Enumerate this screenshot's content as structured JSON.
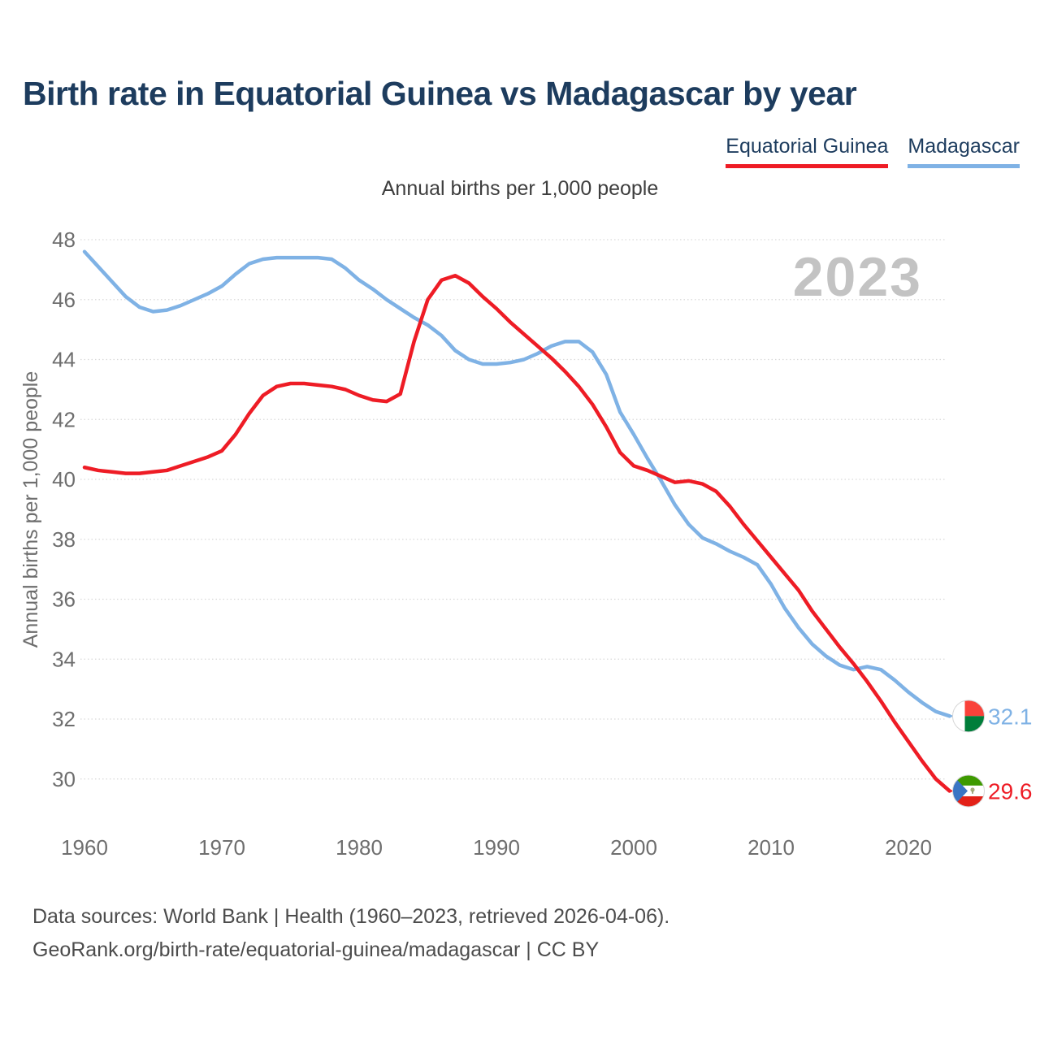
{
  "header": {
    "title": "Birth rate in Equatorial Guinea vs Madagascar by year"
  },
  "legend": {
    "items": [
      {
        "label": "Equatorial Guinea",
        "color": "#ee1c25"
      },
      {
        "label": "Madagascar",
        "color": "#7fb2e5"
      }
    ]
  },
  "subtitle": "Annual births per 1,000 people",
  "colors": {
    "equatorial_guinea": "#ee1c25",
    "madagascar": "#7fb2e5",
    "title_text": "#1d3c5e",
    "axis_text": "#6e6e6e",
    "gridline": "#d9d9d9",
    "watermark": "#c3c3c3",
    "footer_text": "#4c4c4c",
    "flag_blue": "#3a75c4",
    "flag_green": "#3e9a00",
    "flag_red": "#e32118",
    "madagascar_flag_green": "#007e3a",
    "madagascar_flag_red": "#f9423a"
  },
  "chart_data": {
    "type": "line",
    "title": "Birth rate in Equatorial Guinea vs Madagascar by year",
    "subtitle": "Annual births per 1,000 people",
    "xlabel": "",
    "ylabel": "Annual births per 1,000 people",
    "watermark": "2023",
    "grid": "horizontal-dotted",
    "legend_position": "top-right",
    "xlim": [
      1960,
      2023
    ],
    "ylim": [
      29,
      48.5
    ],
    "x_ticks": [
      1960,
      1970,
      1980,
      1990,
      2000,
      2010,
      2020
    ],
    "y_ticks": [
      48,
      46,
      44,
      42,
      40,
      38,
      36,
      34,
      32,
      30
    ],
    "years": [
      1960,
      1961,
      1962,
      1963,
      1964,
      1965,
      1966,
      1967,
      1968,
      1969,
      1970,
      1971,
      1972,
      1973,
      1974,
      1975,
      1976,
      1977,
      1978,
      1979,
      1980,
      1981,
      1982,
      1983,
      1984,
      1985,
      1986,
      1987,
      1988,
      1989,
      1990,
      1991,
      1992,
      1993,
      1994,
      1995,
      1996,
      1997,
      1998,
      1999,
      2000,
      2001,
      2002,
      2003,
      2004,
      2005,
      2006,
      2007,
      2008,
      2009,
      2010,
      2011,
      2012,
      2013,
      2014,
      2015,
      2016,
      2017,
      2018,
      2019,
      2020,
      2021,
      2022,
      2023
    ],
    "series": [
      {
        "name": "Equatorial Guinea",
        "color": "#ee1c25",
        "end_label": "29.6",
        "end_value": 29.6,
        "flag": "equatorial-guinea-flag-icon",
        "values": [
          40.4,
          40.3,
          40.25,
          40.2,
          40.2,
          40.25,
          40.3,
          40.45,
          40.6,
          40.75,
          40.95,
          41.5,
          42.2,
          42.8,
          43.1,
          43.2,
          43.2,
          43.15,
          43.1,
          43.0,
          42.8,
          42.65,
          42.6,
          42.85,
          44.6,
          46.0,
          46.65,
          46.8,
          46.55,
          46.1,
          45.7,
          45.25,
          44.85,
          44.45,
          44.05,
          43.6,
          43.1,
          42.5,
          41.75,
          40.9,
          40.45,
          40.3,
          40.1,
          39.9,
          39.95,
          39.85,
          39.6,
          39.1,
          38.5,
          37.95,
          37.4,
          36.85,
          36.3,
          35.6,
          35.0,
          34.4,
          33.85,
          33.25,
          32.6,
          31.9,
          31.25,
          30.6,
          30.0,
          29.6
        ]
      },
      {
        "name": "Madagascar",
        "color": "#7fb2e5",
        "end_label": "32.1",
        "end_value": 32.1,
        "flag": "madagascar-flag-icon",
        "values": [
          47.6,
          47.1,
          46.6,
          46.1,
          45.75,
          45.6,
          45.65,
          45.8,
          46.0,
          46.2,
          46.45,
          46.85,
          47.2,
          47.35,
          47.4,
          47.4,
          47.4,
          47.4,
          47.35,
          47.05,
          46.65,
          46.35,
          46.0,
          45.7,
          45.4,
          45.15,
          44.8,
          44.3,
          44.0,
          43.85,
          43.85,
          43.9,
          44.0,
          44.2,
          44.45,
          44.6,
          44.6,
          44.25,
          43.5,
          42.25,
          41.5,
          40.7,
          39.95,
          39.15,
          38.5,
          38.05,
          37.85,
          37.6,
          37.4,
          37.15,
          36.5,
          35.7,
          35.05,
          34.5,
          34.1,
          33.8,
          33.65,
          33.75,
          33.65,
          33.3,
          32.9,
          32.55,
          32.25,
          32.1
        ]
      }
    ]
  },
  "footer": {
    "line1": "Data sources: World Bank | Health (1960–2023, retrieved 2026-04-06).",
    "line2": "GeoRank.org/birth-rate/equatorial-guinea/madagascar | CC BY"
  }
}
